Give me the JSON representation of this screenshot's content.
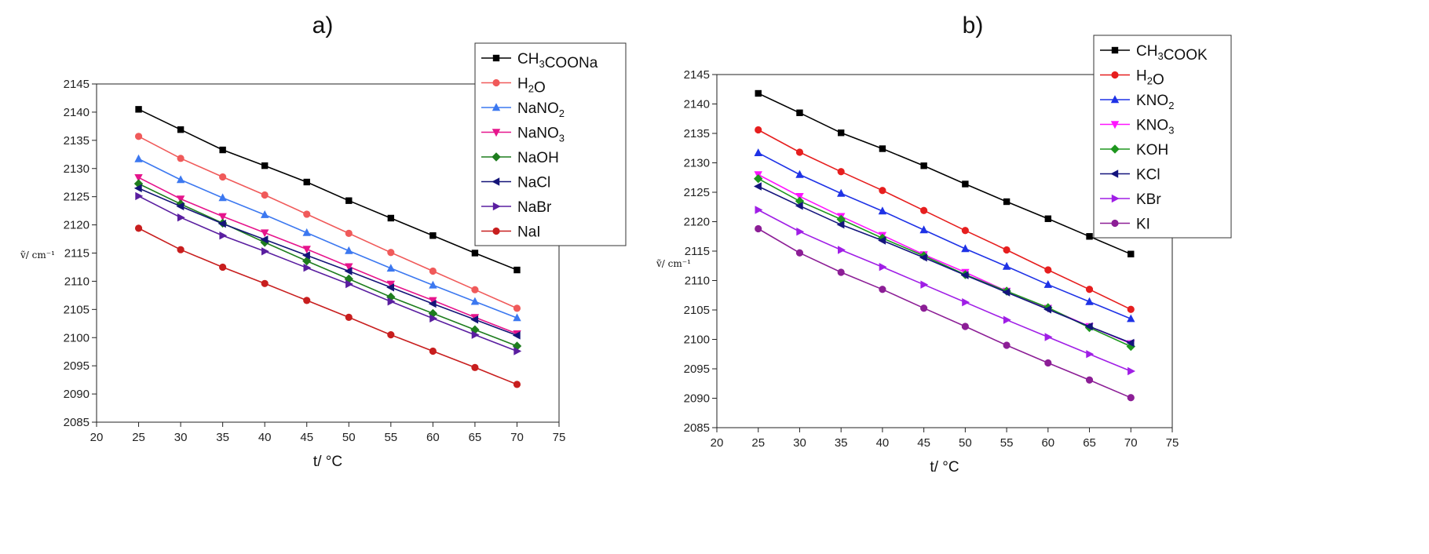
{
  "chart_data": [
    {
      "type": "line",
      "panel": "a)",
      "xlabel": "t/ °C",
      "ylabel": "ṽ/ cm⁻¹",
      "xlim": [
        20,
        75
      ],
      "ylim": [
        2085,
        2145
      ],
      "xticks": [
        20,
        25,
        30,
        35,
        40,
        45,
        50,
        55,
        60,
        65,
        70,
        75
      ],
      "yticks": [
        2085,
        2090,
        2095,
        2100,
        2105,
        2110,
        2115,
        2120,
        2125,
        2130,
        2135,
        2140,
        2145
      ],
      "legend": "top-right",
      "x": [
        25,
        30,
        35,
        40,
        45,
        50,
        55,
        60,
        65,
        70
      ],
      "series": [
        {
          "name": "CH₃COONa",
          "color": "#000000",
          "marker": "square",
          "values": [
            2140.5,
            2136.9,
            2133.3,
            2130.5,
            2127.6,
            2124.3,
            2121.2,
            2118.1,
            2115.0,
            2112.0
          ]
        },
        {
          "name": "H₂O",
          "color": "#f05a5a",
          "marker": "circle",
          "values": [
            2135.7,
            2131.8,
            2128.5,
            2125.3,
            2121.9,
            2118.5,
            2115.1,
            2111.8,
            2108.5,
            2105.2
          ]
        },
        {
          "name": "NaNO₂",
          "color": "#3c78f0",
          "marker": "triangle-up",
          "values": [
            2131.7,
            2128.0,
            2124.8,
            2121.8,
            2118.6,
            2115.4,
            2112.3,
            2109.3,
            2106.4,
            2103.5
          ]
        },
        {
          "name": "NaNO₃",
          "color": "#e6148c",
          "marker": "triangle-down",
          "values": [
            2128.4,
            2124.6,
            2121.5,
            2118.6,
            2115.7,
            2112.6,
            2109.5,
            2106.6,
            2103.6,
            2100.7
          ]
        },
        {
          "name": "NaOH",
          "color": "#1e7d1e",
          "marker": "diamond",
          "values": [
            2127.3,
            2123.7,
            2120.3,
            2116.9,
            2113.6,
            2110.4,
            2107.2,
            2104.3,
            2101.4,
            2098.5
          ]
        },
        {
          "name": "NaCl",
          "color": "#141478",
          "marker": "triangle-left",
          "values": [
            2126.5,
            2123.3,
            2120.2,
            2117.4,
            2114.6,
            2111.8,
            2108.9,
            2106.0,
            2103.2,
            2100.4
          ]
        },
        {
          "name": "NaBr",
          "color": "#5a1ea0",
          "marker": "triangle-right",
          "values": [
            2125.1,
            2121.3,
            2118.1,
            2115.3,
            2112.4,
            2109.5,
            2106.4,
            2103.4,
            2100.5,
            2097.6
          ]
        },
        {
          "name": "NaI",
          "color": "#c81e1e",
          "marker": "circle",
          "values": [
            2119.4,
            2115.6,
            2112.5,
            2109.6,
            2106.6,
            2103.6,
            2100.5,
            2097.6,
            2094.7,
            2091.7
          ]
        }
      ]
    },
    {
      "type": "line",
      "panel": "b)",
      "xlabel": "t/ °C",
      "ylabel": "ṽ/ cm⁻¹",
      "xlim": [
        20,
        75
      ],
      "ylim": [
        2085,
        2145
      ],
      "xticks": [
        20,
        25,
        30,
        35,
        40,
        45,
        50,
        55,
        60,
        65,
        70,
        75
      ],
      "yticks": [
        2085,
        2090,
        2095,
        2100,
        2105,
        2110,
        2115,
        2120,
        2125,
        2130,
        2135,
        2140,
        2145
      ],
      "legend": "top-right",
      "x": [
        25,
        30,
        35,
        40,
        45,
        50,
        55,
        60,
        65,
        70
      ],
      "series": [
        {
          "name": "CH₃COOK",
          "color": "#000000",
          "marker": "square",
          "values": [
            2141.8,
            2138.5,
            2135.1,
            2132.4,
            2129.5,
            2126.4,
            2123.4,
            2120.5,
            2117.5,
            2114.5
          ]
        },
        {
          "name": "H₂O",
          "color": "#e61e1e",
          "marker": "circle",
          "values": [
            2135.6,
            2131.8,
            2128.5,
            2125.3,
            2121.9,
            2118.5,
            2115.2,
            2111.8,
            2108.5,
            2105.1
          ]
        },
        {
          "name": "KNO₂",
          "color": "#1e32e6",
          "marker": "triangle-up",
          "values": [
            2131.7,
            2128.0,
            2124.8,
            2121.8,
            2118.6,
            2115.4,
            2112.4,
            2109.3,
            2106.4,
            2103.5
          ]
        },
        {
          "name": "KNO₃",
          "color": "#ff14ff",
          "marker": "triangle-down",
          "values": [
            2128.0,
            2124.3,
            2120.9,
            2117.7,
            2114.4,
            2111.4,
            2108.2,
            2105.3,
            2102.2,
            2099.3
          ]
        },
        {
          "name": "KOH",
          "color": "#1e961e",
          "marker": "diamond",
          "values": [
            2127.3,
            2123.5,
            2120.4,
            2117.2,
            2114.2,
            2111.0,
            2108.2,
            2105.4,
            2102.0,
            2098.8
          ]
        },
        {
          "name": "KCl",
          "color": "#14147d",
          "marker": "triangle-left",
          "values": [
            2126.0,
            2122.7,
            2119.5,
            2116.8,
            2113.9,
            2110.9,
            2108.0,
            2105.1,
            2102.2,
            2099.4
          ]
        },
        {
          "name": "KBr",
          "color": "#a01ee6",
          "marker": "triangle-right",
          "values": [
            2122.0,
            2118.3,
            2115.2,
            2112.3,
            2109.3,
            2106.3,
            2103.3,
            2100.4,
            2097.5,
            2094.6
          ]
        },
        {
          "name": "KI",
          "color": "#8c1e96",
          "marker": "circle",
          "values": [
            2118.8,
            2114.7,
            2111.4,
            2108.5,
            2105.3,
            2102.2,
            2099.0,
            2096.0,
            2093.1,
            2090.1
          ]
        }
      ]
    }
  ]
}
